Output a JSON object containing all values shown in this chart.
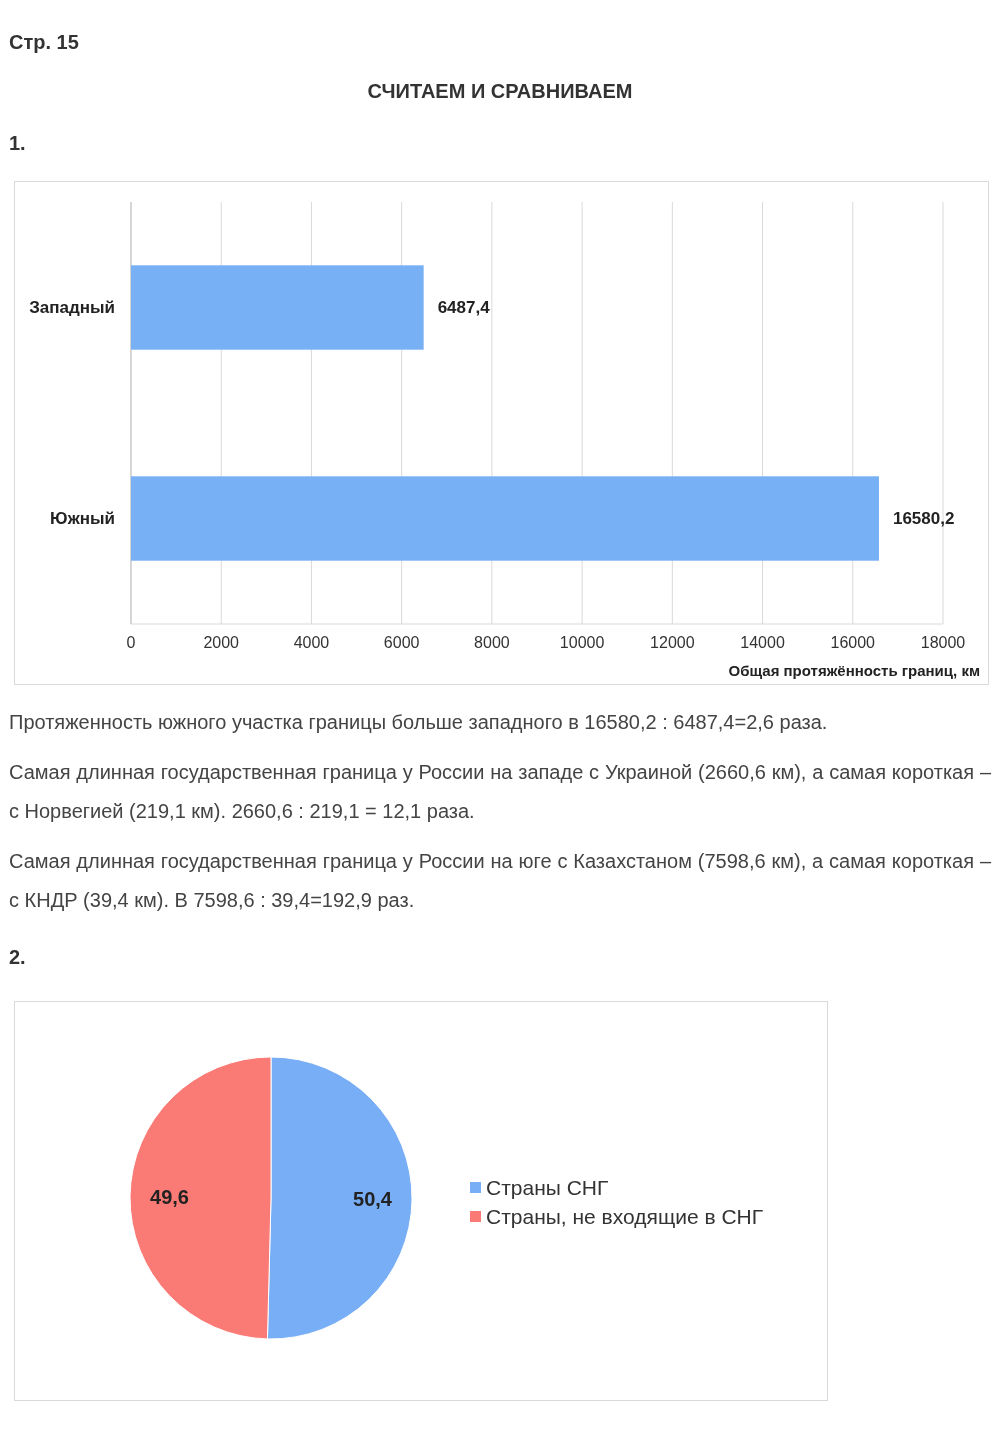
{
  "chart_data": [
    {
      "type": "bar",
      "orientation": "horizontal",
      "title": "СЧИТАЕМ И СРАВНИВАЕМ",
      "categories": [
        "Западный",
        "Южный"
      ],
      "values": [
        6487.4,
        16580.2
      ],
      "value_labels": [
        "6487,4",
        "16580,2"
      ],
      "color": "#78b0f5",
      "xlim": [
        0,
        18000
      ],
      "xticks": [
        0,
        2000,
        4000,
        6000,
        8000,
        10000,
        12000,
        14000,
        16000,
        18000
      ],
      "xlabel": "Общая протяжённость границ, км",
      "grid": "x",
      "annotations": [
        "Стр. 15",
        "1.",
        "Протяженность южного участка границы больше западного в 16580,2 : 6487,4=2,6 раза.",
        "Самая длинная государственная граница у России на западе с Украиной (2660,6 км), а самая короткая – с Норвегией (219,1 км). 2660,6 : 219,1 = 12,1 раза.",
        "Самая длинная государственная граница у России на юге с Казахстаном (7598,6 км), а самая короткая – с КНДР (39,4 км). В 7598,6 : 39,4=192,9 раз."
      ]
    },
    {
      "type": "pie",
      "categories": [
        "Страны СНГ",
        "Страны, не входящие в СНГ"
      ],
      "values": [
        50.4,
        49.6
      ],
      "value_labels": [
        "50,4",
        "49,6"
      ],
      "colors": [
        "#78aef5",
        "#fa7b76"
      ],
      "legend": "right",
      "annotations": [
        "2."
      ]
    }
  ]
}
